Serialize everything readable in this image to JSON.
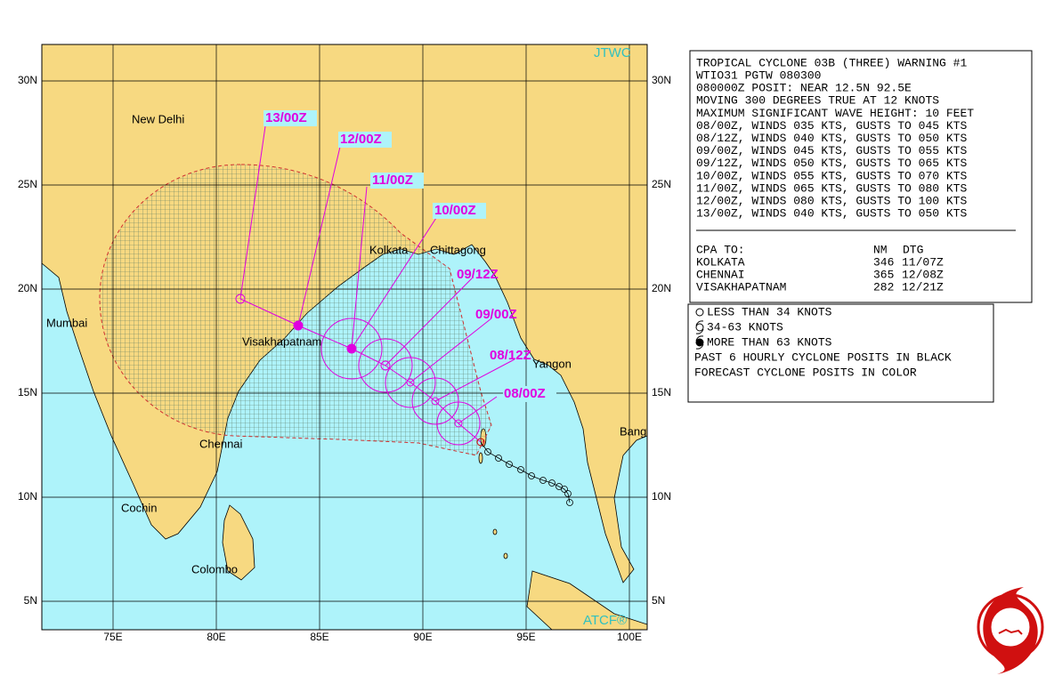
{
  "map": {
    "corner_labels": [
      "JTWC",
      "ATCF®"
    ],
    "lon_ticks": [
      {
        "value": 75,
        "label": "75E"
      },
      {
        "value": 80,
        "label": "80E"
      },
      {
        "value": 85,
        "label": "85E"
      },
      {
        "value": 90,
        "label": "90E"
      },
      {
        "value": 95,
        "label": "95E"
      },
      {
        "value": 100,
        "label": "100E"
      }
    ],
    "lat_ticks": [
      {
        "value": 5,
        "label": "5N"
      },
      {
        "value": 10,
        "label": "10N"
      },
      {
        "value": 15,
        "label": "15N"
      },
      {
        "value": 20,
        "label": "20N"
      },
      {
        "value": 25,
        "label": "25N"
      },
      {
        "value": 30,
        "label": "30N"
      }
    ],
    "cities": [
      "New Delhi",
      "Kolkata",
      "Chittagong",
      "Mumbai",
      "Visakhapatnam",
      "Yangon",
      "Chennai",
      "Cochin",
      "Colombo",
      "Bang"
    ],
    "forecast_labels": [
      "08/00Z",
      "08/12Z",
      "09/00Z",
      "09/12Z",
      "10/00Z",
      "11/00Z",
      "12/00Z",
      "13/00Z"
    ]
  },
  "warning": {
    "lines": [
      "TROPICAL CYCLONE 03B (THREE) WARNING #1",
      "WTIO31 PGTW 080300",
      "080000Z POSIT: NEAR 12.5N 92.5E",
      "MOVING 300 DEGREES TRUE AT 12 KNOTS",
      "MAXIMUM SIGNIFICANT WAVE HEIGHT: 10 FEET",
      "08/00Z, WINDS 035 KTS, GUSTS TO 045 KTS",
      "08/12Z, WINDS 040 KTS, GUSTS TO 050 KTS",
      "09/00Z, WINDS 045 KTS, GUSTS TO 055 KTS",
      "09/12Z, WINDS 050 KTS, GUSTS TO 065 KTS",
      "10/00Z, WINDS 055 KTS, GUSTS TO 070 KTS",
      "11/00Z, WINDS 065 KTS, GUSTS TO 080 KTS",
      "12/00Z, WINDS 080 KTS, GUSTS TO 100 KTS",
      "13/00Z, WINDS 040 KTS, GUSTS TO 050 KTS"
    ]
  },
  "cpa": {
    "header": [
      "CPA TO:",
      "NM",
      "DTG"
    ],
    "rows": [
      [
        "KOLKATA",
        "346",
        "11/07Z"
      ],
      [
        "CHENNAI",
        "365",
        "12/08Z"
      ],
      [
        "VISAKHAPATNAM",
        "282",
        "12/21Z"
      ]
    ]
  },
  "legend": {
    "items": [
      "LESS THAN 34 KNOTS",
      "34-63 KNOTS",
      "MORE THAN 63 KNOTS",
      "PAST 6 HOURLY CYCLONE POSITS IN BLACK",
      "FORECAST CYCLONE POSITS IN COLOR"
    ]
  }
}
